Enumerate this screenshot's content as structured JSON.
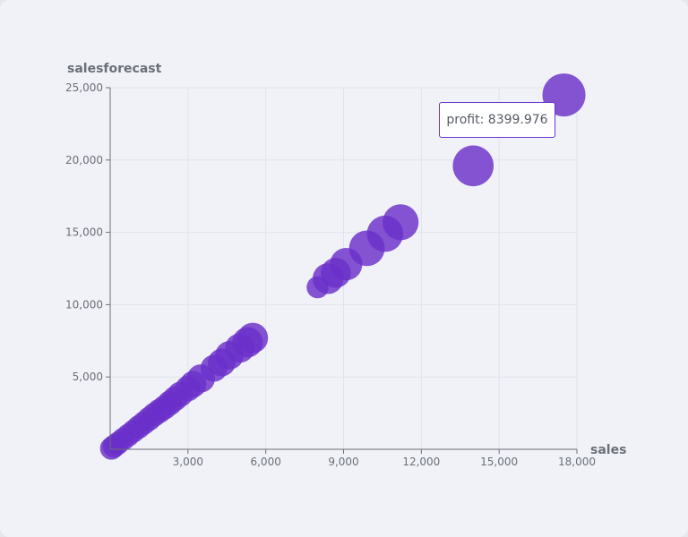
{
  "chart_data": {
    "type": "scatter",
    "title": "",
    "xlabel": "sales",
    "ylabel": "salesforecast",
    "xlim": [
      0,
      18000
    ],
    "ylim": [
      0,
      25000
    ],
    "x_ticks": [
      "3,000",
      "6,000",
      "9,000",
      "12,000",
      "15,000",
      "18,000"
    ],
    "x_tick_values": [
      3000,
      6000,
      9000,
      12000,
      15000,
      18000
    ],
    "y_ticks": [
      "5,000",
      "10,000",
      "15,000",
      "20,000",
      "25,000"
    ],
    "y_tick_values": [
      5000,
      10000,
      15000,
      20000,
      25000
    ],
    "grid": true,
    "size_field": "profit",
    "color": "#6a2fc9",
    "points": [
      {
        "x": 17500,
        "y": 24500,
        "profit": 8400
      },
      {
        "x": 14000,
        "y": 19600,
        "profit": 7600
      },
      {
        "x": 11200,
        "y": 15700,
        "profit": 5900
      },
      {
        "x": 10600,
        "y": 14900,
        "profit": 6000
      },
      {
        "x": 9900,
        "y": 13900,
        "profit": 5800
      },
      {
        "x": 9100,
        "y": 12800,
        "profit": 4800
      },
      {
        "x": 8700,
        "y": 12200,
        "profit": 4100
      },
      {
        "x": 8400,
        "y": 11800,
        "profit": 4300
      },
      {
        "x": 8000,
        "y": 11200,
        "profit": 2200
      },
      {
        "x": 5500,
        "y": 7700,
        "profit": 4200
      },
      {
        "x": 5300,
        "y": 7400,
        "profit": 4200
      },
      {
        "x": 5000,
        "y": 7000,
        "profit": 3900
      },
      {
        "x": 4600,
        "y": 6500,
        "profit": 3700
      },
      {
        "x": 4300,
        "y": 6000,
        "profit": 3500
      },
      {
        "x": 4000,
        "y": 5600,
        "profit": 3300
      },
      {
        "x": 3500,
        "y": 4900,
        "profit": 3600
      },
      {
        "x": 3200,
        "y": 4500,
        "profit": 3200
      },
      {
        "x": 3000,
        "y": 4200,
        "profit": 3000
      },
      {
        "x": 2700,
        "y": 3800,
        "profit": 2900
      },
      {
        "x": 2500,
        "y": 3500,
        "profit": 2800
      },
      {
        "x": 2300,
        "y": 3200,
        "profit": 2800
      },
      {
        "x": 2100,
        "y": 2900,
        "profit": 2700
      },
      {
        "x": 1900,
        "y": 2650,
        "profit": 2700
      },
      {
        "x": 1700,
        "y": 2400,
        "profit": 2600
      },
      {
        "x": 1500,
        "y": 2100,
        "profit": 2600
      },
      {
        "x": 1300,
        "y": 1820,
        "profit": 2500
      },
      {
        "x": 1100,
        "y": 1540,
        "profit": 2500
      },
      {
        "x": 900,
        "y": 1260,
        "profit": 2400
      },
      {
        "x": 700,
        "y": 980,
        "profit": 2400
      },
      {
        "x": 500,
        "y": 700,
        "profit": 2400
      },
      {
        "x": 300,
        "y": 420,
        "profit": 2400
      },
      {
        "x": 150,
        "y": 210,
        "profit": 2400
      },
      {
        "x": 50,
        "y": 70,
        "profit": 2400
      }
    ]
  },
  "tooltip": {
    "text": "profit: 8399.976"
  }
}
